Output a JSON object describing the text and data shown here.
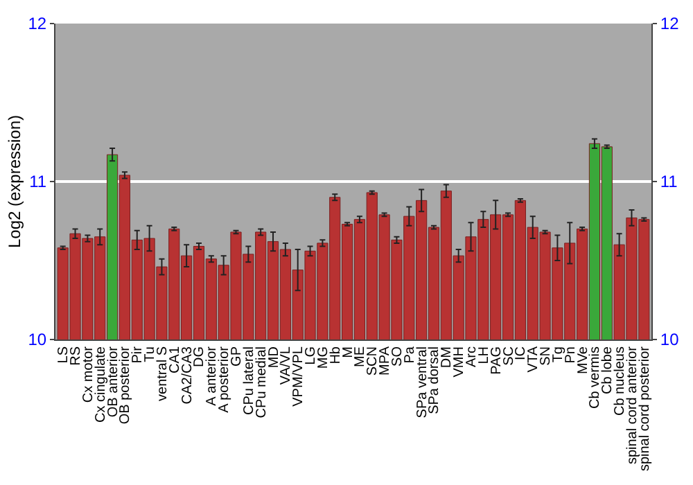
{
  "chart_data": {
    "type": "bar",
    "ylabel": "Log2 (expression)",
    "categories": [
      "LS",
      "RS",
      "Cx motor",
      "Cx cingulate",
      "OB anterior",
      "OB posterior",
      "Pir",
      "Tu",
      "ventral S",
      "CA1",
      "CA2/CA3",
      "DG",
      "A anterior",
      "A posterior",
      "GP",
      "CPu lateral",
      "CPu medial",
      "MD",
      "VA/VL",
      "VPM/VPL",
      "LG",
      "MG",
      "Hb",
      "M",
      "ME",
      "SCN",
      "MPA",
      "SO",
      "Pa",
      "SPa ventral",
      "SPa dorsal",
      "DM",
      "VMH",
      "Arc",
      "LH",
      "PAG",
      "SC",
      "IC",
      "VTA",
      "SN",
      "Tg",
      "Pn",
      "MVe",
      "Cb vermis",
      "Cb lobe",
      "Cb nucleus",
      "spinal cord anterior",
      "spinal cord posterior"
    ],
    "values": [
      10.58,
      10.67,
      10.64,
      10.65,
      11.17,
      11.04,
      10.63,
      10.64,
      10.46,
      10.7,
      10.53,
      10.59,
      10.51,
      10.47,
      10.68,
      10.54,
      10.68,
      10.62,
      10.57,
      10.44,
      10.56,
      10.61,
      10.9,
      10.73,
      10.76,
      10.93,
      10.79,
      10.63,
      10.78,
      10.88,
      10.71,
      10.94,
      10.53,
      10.65,
      10.76,
      10.79,
      10.79,
      10.88,
      10.71,
      10.68,
      10.58,
      10.61,
      10.7,
      11.24,
      11.22,
      10.6,
      10.77,
      10.76
    ],
    "errors": [
      0.01,
      0.03,
      0.02,
      0.05,
      0.04,
      0.02,
      0.06,
      0.08,
      0.05,
      0.01,
      0.07,
      0.02,
      0.02,
      0.06,
      0.01,
      0.05,
      0.02,
      0.06,
      0.04,
      0.13,
      0.03,
      0.02,
      0.02,
      0.01,
      0.02,
      0.01,
      0.01,
      0.02,
      0.06,
      0.07,
      0.01,
      0.04,
      0.04,
      0.09,
      0.05,
      0.09,
      0.01,
      0.01,
      0.07,
      0.01,
      0.08,
      0.13,
      0.01,
      0.03,
      0.01,
      0.07,
      0.05,
      0.01
    ],
    "colors": [
      "#b83232",
      "#b83232",
      "#b83232",
      "#b83232",
      "#3aa83a",
      "#b83232",
      "#b83232",
      "#b83232",
      "#b83232",
      "#b83232",
      "#b83232",
      "#b83232",
      "#b83232",
      "#b83232",
      "#b83232",
      "#b83232",
      "#b83232",
      "#b83232",
      "#b83232",
      "#b83232",
      "#b83232",
      "#b83232",
      "#b83232",
      "#b83232",
      "#b83232",
      "#b83232",
      "#b83232",
      "#b83232",
      "#b83232",
      "#b83232",
      "#b83232",
      "#b83232",
      "#b83232",
      "#b83232",
      "#b83232",
      "#b83232",
      "#b83232",
      "#b83232",
      "#b83232",
      "#b83232",
      "#b83232",
      "#b83232",
      "#b83232",
      "#3aa83a",
      "#3aa83a",
      "#b83232",
      "#b83232",
      "#b83232"
    ],
    "ylim": [
      10,
      12
    ],
    "yticks": [
      10,
      11,
      12
    ],
    "y2lim": [
      10,
      12
    ],
    "y2ticks": [
      10,
      11,
      12
    ],
    "grid": "y"
  }
}
